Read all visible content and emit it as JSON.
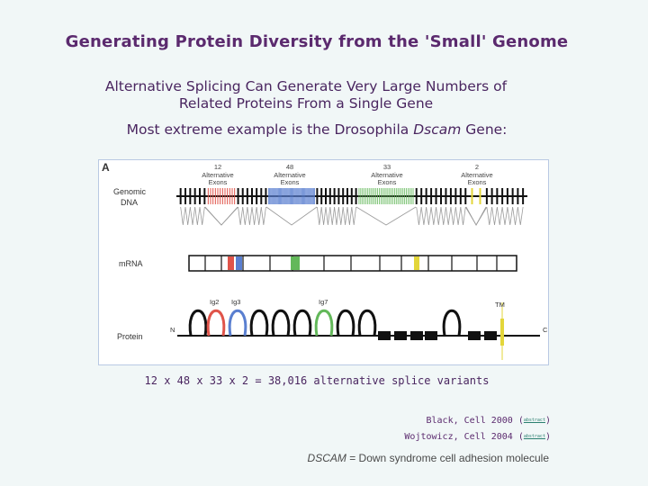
{
  "title": "Generating Protein Diversity from the 'Small' Genome",
  "subtitle_line1": "Alternative Splicing Can Generate Very Large Numbers of",
  "subtitle_line2": "Related Proteins From a Single Gene",
  "extreme_prefix": "Most extreme example is the Drosophila ",
  "extreme_italic": "Dscam",
  "extreme_suffix": " Gene:",
  "figure": {
    "panel_label": "A",
    "row_labels": {
      "genomic_line1": "Genomic",
      "genomic_line2": "DNA",
      "mrna": "mRNA",
      "protein": "Protein"
    },
    "exon_clusters": [
      {
        "count": "12",
        "line1": "Alternative",
        "line2": "Exons",
        "color": "#e0544a"
      },
      {
        "count": "48",
        "line1": "Alternative",
        "line2": "Exons",
        "color": "#5a7fd0"
      },
      {
        "count": "33",
        "line1": "Alternative",
        "line2": "Exons",
        "color": "#63b85a"
      },
      {
        "count": "2",
        "line1": "Alternative",
        "line2": "Exons",
        "color": "#e3d63a"
      }
    ],
    "domain_labels": {
      "ig2": "Ig2",
      "ig3": "Ig3",
      "ig7": "Ig7",
      "tm": "TM",
      "n_term": "N",
      "c_term": "C"
    }
  },
  "calculation": "12 x 48 x 33 x 2 = 38,016 alternative splice variants",
  "references": [
    {
      "text": "Black, Cell 2000",
      "link": "abstract"
    },
    {
      "text": "Wojtowicz, Cell 2004",
      "link": "abstract"
    }
  ],
  "acronym_italic": "DSCAM",
  "acronym_rest": " = Down syndrome cell adhesion molecule"
}
